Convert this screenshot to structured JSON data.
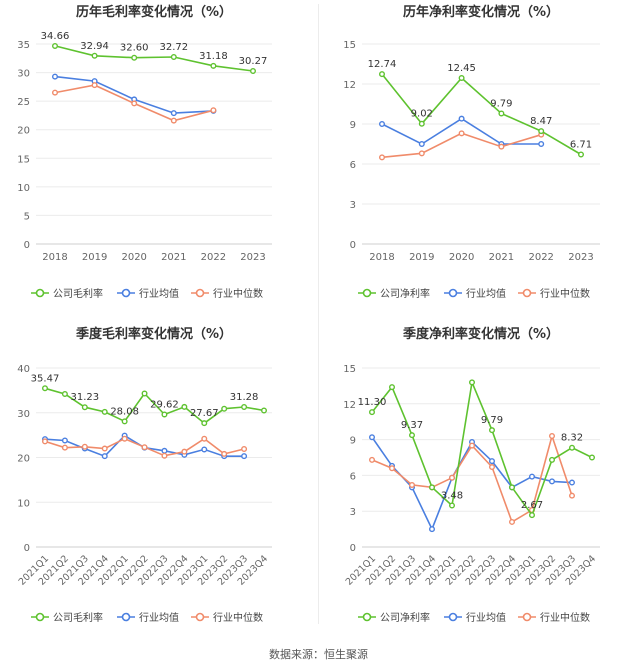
{
  "footer": {
    "source": "数据来源：恒生聚源"
  },
  "colors": {
    "company": "#5ec22f",
    "industry_avg": "#4a7fe0",
    "industry_median": "#f08b6a"
  },
  "legend_labels": {
    "company_gross": "公司毛利率",
    "company_net": "公司净利率",
    "industry_avg": "行业均值",
    "industry_median": "行业中位数"
  },
  "chart_data": [
    {
      "type": "line",
      "title": "历年毛利率变化情况（%）",
      "categories": [
        "2018",
        "2019",
        "2020",
        "2021",
        "2022",
        "2023"
      ],
      "ylim": [
        0,
        35
      ],
      "yticks": [
        0,
        5,
        10,
        15,
        20,
        25,
        30,
        35
      ],
      "grid": true,
      "legend": "bottom",
      "series": [
        {
          "name": "公司毛利率",
          "role": "company",
          "values": [
            34.66,
            32.94,
            32.6,
            32.72,
            31.18,
            30.27
          ],
          "labels": [
            "34.66",
            "32.94",
            "32.60",
            "32.72",
            "31.18",
            "30.27"
          ]
        },
        {
          "name": "行业均值",
          "role": "industry_avg",
          "values": [
            29.3,
            28.5,
            25.3,
            22.9,
            23.3,
            null
          ]
        },
        {
          "name": "行业中位数",
          "role": "industry_median",
          "values": [
            26.5,
            27.8,
            24.6,
            21.6,
            23.4,
            null
          ]
        }
      ]
    },
    {
      "type": "line",
      "title": "历年净利率变化情况（%）",
      "categories": [
        "2018",
        "2019",
        "2020",
        "2021",
        "2022",
        "2023"
      ],
      "ylim": [
        0,
        15
      ],
      "yticks": [
        0,
        3,
        6,
        9,
        12,
        15
      ],
      "grid": true,
      "legend": "bottom",
      "series": [
        {
          "name": "公司净利率",
          "role": "company",
          "values": [
            12.74,
            9.02,
            12.45,
            9.79,
            8.47,
            6.71
          ],
          "labels": [
            "12.74",
            "9.02",
            "12.45",
            "9.79",
            "8.47",
            "6.71"
          ]
        },
        {
          "name": "行业均值",
          "role": "industry_avg",
          "values": [
            9.0,
            7.5,
            9.4,
            7.5,
            7.5,
            null
          ]
        },
        {
          "name": "行业中位数",
          "role": "industry_median",
          "values": [
            6.5,
            6.8,
            8.3,
            7.3,
            8.2,
            null
          ]
        }
      ]
    },
    {
      "type": "line",
      "title": "季度毛利率变化情况（%）",
      "categories": [
        "2021Q1",
        "2021Q2",
        "2021Q3",
        "2021Q4",
        "2022Q1",
        "2022Q2",
        "2022Q3",
        "2022Q4",
        "2023Q1",
        "2023Q2",
        "2023Q3",
        "2023Q4"
      ],
      "ylim": [
        0,
        40
      ],
      "yticks": [
        0,
        10,
        20,
        30,
        40
      ],
      "grid": true,
      "legend": "bottom",
      "series": [
        {
          "name": "公司毛利率",
          "role": "company",
          "values": [
            35.47,
            34.2,
            31.23,
            30.2,
            28.08,
            34.3,
            29.62,
            31.3,
            27.67,
            30.9,
            31.28,
            30.5
          ],
          "labels": [
            "35.47",
            "",
            "31.23",
            "",
            "28.08",
            "",
            "29.62",
            "",
            "27.67",
            "",
            "31.28",
            ""
          ]
        },
        {
          "name": "行业均值",
          "role": "industry_avg",
          "values": [
            24.1,
            23.8,
            22.0,
            20.3,
            24.9,
            22.2,
            21.5,
            20.6,
            21.8,
            20.3,
            20.3,
            null
          ]
        },
        {
          "name": "行业中位数",
          "role": "industry_median",
          "values": [
            23.6,
            22.2,
            22.4,
            22.0,
            24.2,
            22.3,
            20.4,
            21.3,
            24.2,
            20.8,
            21.9,
            null
          ]
        }
      ]
    },
    {
      "type": "line",
      "title": "季度净利率变化情况（%）",
      "categories": [
        "2021Q1",
        "2021Q2",
        "2021Q3",
        "2021Q4",
        "2022Q1",
        "2022Q2",
        "2022Q3",
        "2022Q4",
        "2023Q1",
        "2023Q2",
        "2023Q3",
        "2023Q4"
      ],
      "ylim": [
        0,
        15
      ],
      "yticks": [
        0,
        3,
        6,
        9,
        12,
        15
      ],
      "grid": true,
      "legend": "bottom",
      "series": [
        {
          "name": "公司净利率",
          "role": "company",
          "values": [
            11.3,
            13.4,
            9.37,
            5.0,
            3.48,
            13.8,
            9.79,
            5.0,
            2.67,
            7.3,
            8.32,
            7.5
          ],
          "labels": [
            "11.30",
            "",
            "9.37",
            "",
            "3.48",
            "",
            "9.79",
            "",
            "2.67",
            "",
            "8.32",
            ""
          ]
        },
        {
          "name": "行业均值",
          "role": "industry_avg",
          "values": [
            9.2,
            6.8,
            5.0,
            1.5,
            5.8,
            8.8,
            7.2,
            5.0,
            5.9,
            5.5,
            5.4,
            null
          ]
        },
        {
          "name": "行业中位数",
          "role": "industry_median",
          "values": [
            7.3,
            6.6,
            5.2,
            5.0,
            5.8,
            8.5,
            6.7,
            2.1,
            3.1,
            9.3,
            4.3,
            null
          ]
        }
      ]
    }
  ]
}
